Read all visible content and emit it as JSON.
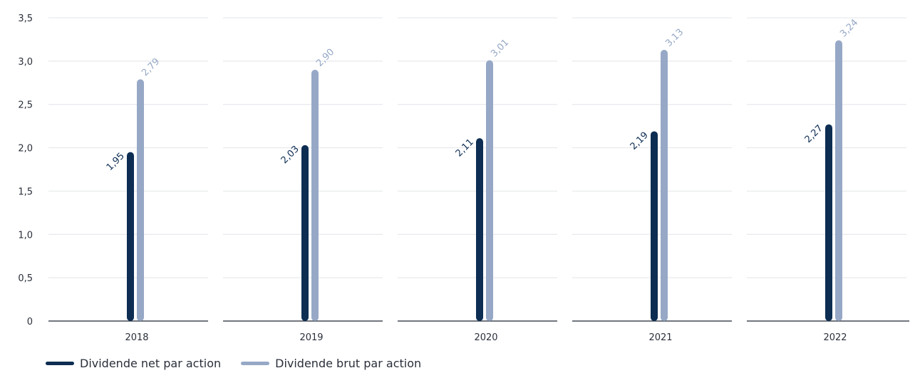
{
  "chart_data": {
    "type": "bar",
    "categories": [
      "2018",
      "2019",
      "2020",
      "2021",
      "2022"
    ],
    "series": [
      {
        "name": "Dividende net par action",
        "values": [
          1.95,
          2.03,
          2.11,
          2.19,
          2.27
        ],
        "labels": [
          "1,95",
          "2,03",
          "2,11",
          "2,19",
          "2,27"
        ],
        "color": "#0d2d52"
      },
      {
        "name": "Dividende brut par action",
        "values": [
          2.79,
          2.9,
          3.01,
          3.13,
          3.24
        ],
        "labels": [
          "2,79",
          "2,90",
          "3,01",
          "3,13",
          "3,24"
        ],
        "color": "#96a8c6"
      }
    ],
    "ylim": [
      0,
      3.5
    ],
    "yticks": [
      0,
      0.5,
      1.0,
      1.5,
      2.0,
      2.5,
      3.0,
      3.5
    ],
    "ytick_labels": [
      "0",
      "0,5",
      "1,0",
      "1,5",
      "2,0",
      "2,5",
      "3,0",
      "3,5"
    ],
    "grid": true,
    "legend_position": "bottom-left",
    "title": "",
    "xlabel": "",
    "ylabel": ""
  }
}
